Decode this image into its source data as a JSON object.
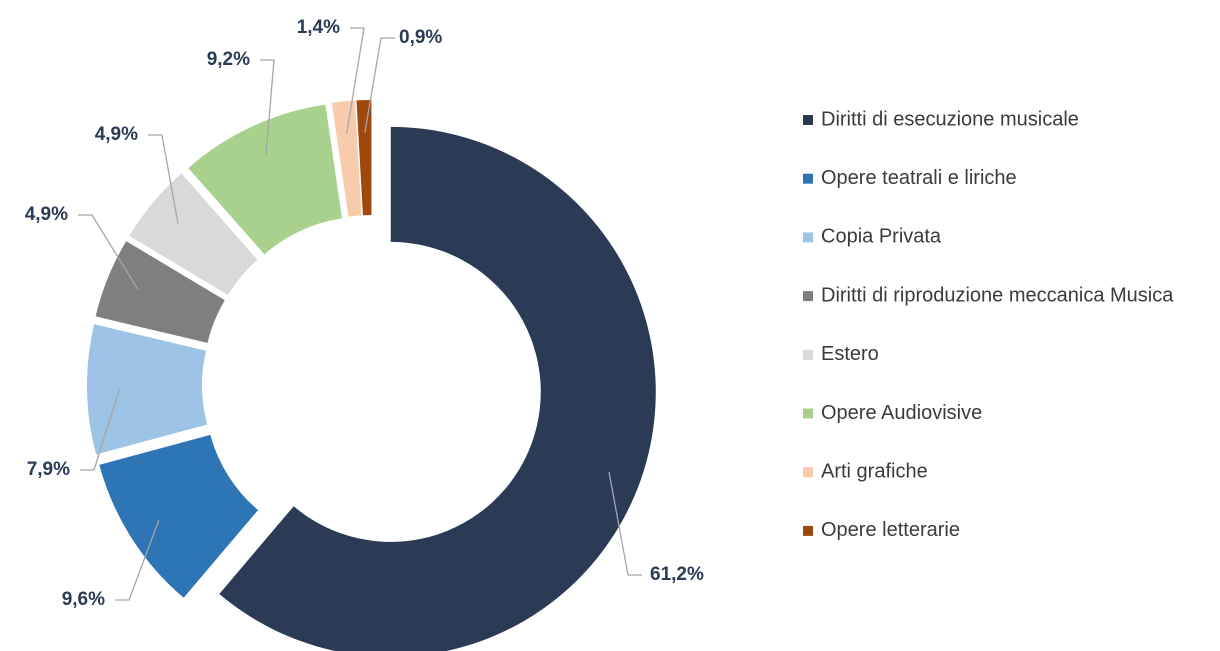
{
  "chart_data": {
    "type": "donut",
    "categories": [
      "Diritti di esecuzione musicale",
      "Opere teatrali e liriche",
      "Copia Privata",
      "Diritti di riproduzione meccanica Musica",
      "Estero",
      "Opere Audiovisive",
      "Arti grafiche",
      "Opere letterarie"
    ],
    "values": [
      61.2,
      9.6,
      7.9,
      4.9,
      4.9,
      9.2,
      1.4,
      0.9
    ],
    "value_labels": [
      "61,2%",
      "9,6%",
      "7,9%",
      "4,9%",
      "4,9%",
      "9,2%",
      "1,4%",
      "0,9%"
    ],
    "colors": [
      "#2b3a55",
      "#2e75b6",
      "#9dc3e6",
      "#7f7f7f",
      "#d9d9d9",
      "#a9d18e",
      "#f8cbad",
      "#9e480e"
    ],
    "legend": "right"
  }
}
